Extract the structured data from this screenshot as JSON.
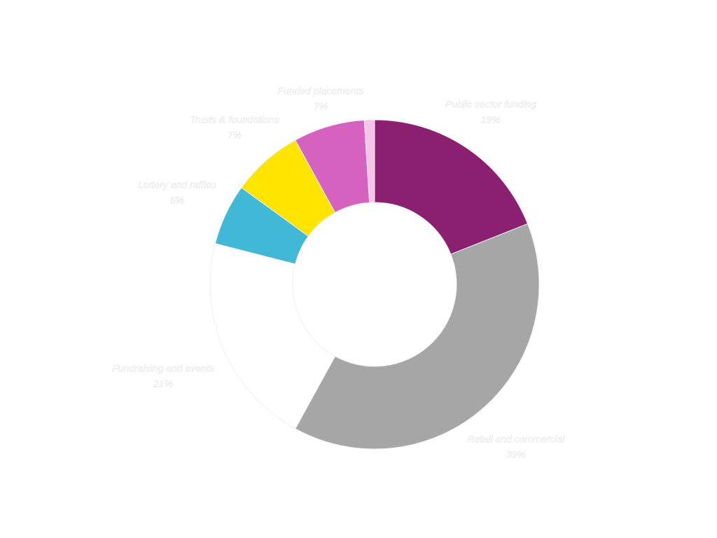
{
  "chart_data": {
    "type": "donut",
    "categories": [
      "Public sector funding",
      "Retail and commercial",
      "Fundraising and events",
      "Lottery and raffles",
      "Trusts & foundations",
      "Funded placements",
      null
    ],
    "values": [
      19,
      39,
      21,
      6,
      7,
      7,
      1
    ],
    "value_labels": [
      "19%",
      "39%",
      "21%",
      "6%",
      "7%",
      "7%",
      null
    ],
    "colors": [
      "#8b2070",
      "#a6a6a6",
      "#ffffff",
      "#41b8d5",
      "#ffe400",
      "#d462be",
      "#f5c4e8"
    ]
  }
}
